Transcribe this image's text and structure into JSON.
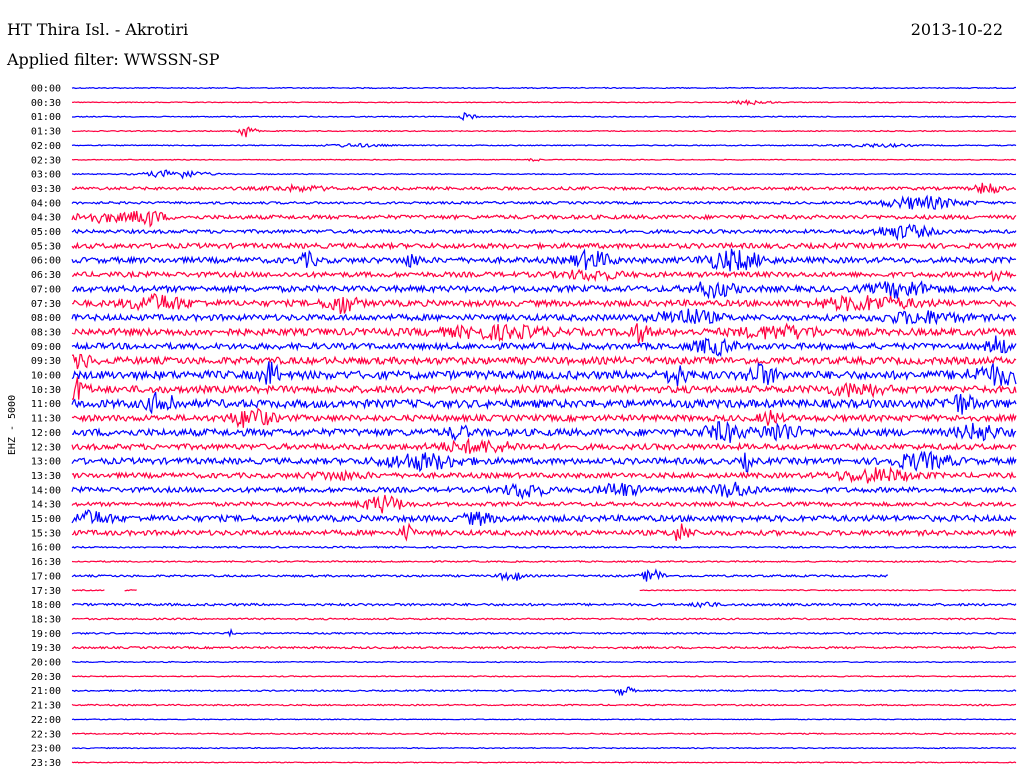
{
  "header": {
    "station": "HT Thira Isl. - Akrotiri",
    "date": "2013-10-22",
    "filter": "Applied filter: WWSSN-SP"
  },
  "chart_data": {
    "type": "line",
    "title": "HT Thira Isl. - Akrotiri",
    "ylabel": "EHZ - 5000",
    "colors": [
      "#0000ff",
      "#ff0040"
    ],
    "rows": [
      {
        "label": "00:00",
        "noise": 0.5
      },
      {
        "label": "00:30",
        "noise": 0.4,
        "events": [
          {
            "t": 0.72,
            "a": 2,
            "w": 0.02
          }
        ]
      },
      {
        "label": "01:00",
        "noise": 0.5,
        "events": [
          {
            "t": 0.42,
            "a": 7,
            "w": 0.006
          }
        ]
      },
      {
        "label": "01:30",
        "noise": 0.5,
        "events": [
          {
            "t": 0.185,
            "a": 7,
            "w": 0.008
          }
        ]
      },
      {
        "label": "02:00",
        "noise": 0.5,
        "events": [
          {
            "t": 0.3,
            "a": 1.5,
            "w": 0.03
          },
          {
            "t": 0.85,
            "a": 1.5,
            "w": 0.04
          }
        ]
      },
      {
        "label": "02:30",
        "noise": 0.4,
        "events": [
          {
            "t": 0.49,
            "a": 2,
            "w": 0.005
          }
        ]
      },
      {
        "label": "03:00",
        "noise": 0.5,
        "events": [
          {
            "t": 0.11,
            "a": 4,
            "w": 0.03
          }
        ]
      },
      {
        "label": "03:30",
        "noise": 1.5,
        "events": [
          {
            "t": 0.97,
            "a": 6,
            "w": 0.012
          },
          {
            "t": 0.24,
            "a": 2,
            "w": 0.03
          }
        ]
      },
      {
        "label": "04:00",
        "noise": 1.2,
        "events": [
          {
            "t": 0.9,
            "a": 6,
            "w": 0.04
          }
        ]
      },
      {
        "label": "04:30",
        "noise": 2,
        "events": [
          {
            "t": 0.08,
            "a": 8,
            "w": 0.015
          },
          {
            "t": 0.03,
            "a": 4,
            "w": 0.03
          }
        ]
      },
      {
        "label": "05:00",
        "noise": 1.8,
        "events": [
          {
            "t": 0.88,
            "a": 6,
            "w": 0.03
          }
        ]
      },
      {
        "label": "05:30",
        "noise": 2.5
      },
      {
        "label": "06:00",
        "noise": 2.8,
        "events": [
          {
            "t": 0.25,
            "a": 6,
            "w": 0.01
          },
          {
            "t": 0.36,
            "a": 5,
            "w": 0.01
          },
          {
            "t": 0.55,
            "a": 8,
            "w": 0.02
          },
          {
            "t": 0.7,
            "a": 9,
            "w": 0.03
          }
        ]
      },
      {
        "label": "06:30",
        "noise": 2.5,
        "events": [
          {
            "t": 0.98,
            "a": 8,
            "w": 0.008
          },
          {
            "t": 0.55,
            "a": 4,
            "w": 0.03
          }
        ]
      },
      {
        "label": "07:00",
        "noise": 3,
        "events": [
          {
            "t": 0.68,
            "a": 7,
            "w": 0.02
          },
          {
            "t": 0.88,
            "a": 7,
            "w": 0.03
          }
        ]
      },
      {
        "label": "07:30",
        "noise": 3,
        "events": [
          {
            "t": 0.09,
            "a": 7,
            "w": 0.03
          },
          {
            "t": 0.285,
            "a": 9,
            "w": 0.015
          },
          {
            "t": 0.84,
            "a": 6,
            "w": 0.05
          }
        ]
      },
      {
        "label": "08:00",
        "noise": 3,
        "events": [
          {
            "t": 0.65,
            "a": 7,
            "w": 0.03
          },
          {
            "t": 0.9,
            "a": 5,
            "w": 0.04
          }
        ]
      },
      {
        "label": "08:30",
        "noise": 3.5,
        "events": [
          {
            "t": 0.6,
            "a": 8,
            "w": 0.01
          },
          {
            "t": 0.45,
            "a": 5,
            "w": 0.05
          },
          {
            "t": 0.75,
            "a": 5,
            "w": 0.04
          }
        ]
      },
      {
        "label": "09:00",
        "noise": 3,
        "events": [
          {
            "t": 0.68,
            "a": 7,
            "w": 0.02
          },
          {
            "t": 0.98,
            "a": 9,
            "w": 0.01
          }
        ]
      },
      {
        "label": "09:30",
        "noise": 3.5,
        "events": [
          {
            "t": 0.01,
            "a": 6,
            "w": 0.01
          }
        ]
      },
      {
        "label": "10:00",
        "noise": 4,
        "events": [
          {
            "t": 0.21,
            "a": 12,
            "w": 0.008
          },
          {
            "t": 0.64,
            "a": 9,
            "w": 0.01
          },
          {
            "t": 0.73,
            "a": 9,
            "w": 0.015
          },
          {
            "t": 0.98,
            "a": 8,
            "w": 0.03
          }
        ]
      },
      {
        "label": "10:30",
        "noise": 3.5,
        "events": [
          {
            "t": 0.005,
            "a": 10,
            "w": 0.01
          },
          {
            "t": 0.83,
            "a": 5,
            "w": 0.03
          }
        ]
      },
      {
        "label": "11:00",
        "noise": 4,
        "events": [
          {
            "t": 0.09,
            "a": 8,
            "w": 0.01
          },
          {
            "t": 0.105,
            "a": 8,
            "w": 0.005
          },
          {
            "t": 0.94,
            "a": 8,
            "w": 0.015
          }
        ]
      },
      {
        "label": "11:30",
        "noise": 3,
        "events": [
          {
            "t": 0.19,
            "a": 9,
            "w": 0.02
          },
          {
            "t": 0.74,
            "a": 6,
            "w": 0.01
          }
        ]
      },
      {
        "label": "12:00",
        "noise": 3.5,
        "events": [
          {
            "t": 0.41,
            "a": 6,
            "w": 0.01
          },
          {
            "t": 0.69,
            "a": 8,
            "w": 0.02
          },
          {
            "t": 0.75,
            "a": 8,
            "w": 0.02
          },
          {
            "t": 0.96,
            "a": 7,
            "w": 0.02
          }
        ]
      },
      {
        "label": "12:30",
        "noise": 2.8,
        "events": [
          {
            "t": 0.43,
            "a": 5,
            "w": 0.04
          }
        ]
      },
      {
        "label": "13:00",
        "noise": 3,
        "events": [
          {
            "t": 0.37,
            "a": 7,
            "w": 0.04
          },
          {
            "t": 0.715,
            "a": 8,
            "w": 0.005
          },
          {
            "t": 0.9,
            "a": 7,
            "w": 0.03
          }
        ]
      },
      {
        "label": "13:30",
        "noise": 2.5,
        "events": [
          {
            "t": 0.85,
            "a": 6,
            "w": 0.04
          },
          {
            "t": 0.28,
            "a": 3,
            "w": 0.03
          }
        ]
      },
      {
        "label": "14:00",
        "noise": 2.5,
        "events": [
          {
            "t": 0.48,
            "a": 7,
            "w": 0.02
          },
          {
            "t": 0.58,
            "a": 6,
            "w": 0.02
          },
          {
            "t": 0.7,
            "a": 7,
            "w": 0.02
          }
        ]
      },
      {
        "label": "14:30",
        "noise": 2,
        "events": [
          {
            "t": 0.33,
            "a": 8,
            "w": 0.02
          }
        ]
      },
      {
        "label": "15:00",
        "noise": 3,
        "events": [
          {
            "t": 0.02,
            "a": 6,
            "w": 0.02
          },
          {
            "t": 0.43,
            "a": 5,
            "w": 0.015
          }
        ]
      },
      {
        "label": "15:30",
        "noise": 2.5,
        "events": [
          {
            "t": 0.355,
            "a": 8,
            "w": 0.006
          },
          {
            "t": 0.645,
            "a": 8,
            "w": 0.01
          }
        ]
      },
      {
        "label": "16:00",
        "noise": 0.8
      },
      {
        "label": "16:30",
        "noise": 0.7
      },
      {
        "label": "17:00",
        "noise": 1,
        "end": 0.865,
        "events": [
          {
            "t": 0.465,
            "a": 6,
            "w": 0.01
          },
          {
            "t": 0.615,
            "a": 7,
            "w": 0.01
          }
        ]
      },
      {
        "label": "17:30",
        "noise": 0.5,
        "gaps": [
          [
            0.035,
            0.055
          ],
          [
            0.07,
            0.6
          ]
        ],
        "events": [
          {
            "t": 0.05,
            "a": 3,
            "w": 0.005
          }
        ]
      },
      {
        "label": "18:00",
        "noise": 1.2,
        "events": [
          {
            "t": 0.67,
            "a": 3,
            "w": 0.01
          }
        ]
      },
      {
        "label": "18:30",
        "noise": 0.8
      },
      {
        "label": "19:00",
        "noise": 0.8,
        "events": [
          {
            "t": 0.17,
            "a": 3,
            "w": 0.005
          }
        ]
      },
      {
        "label": "19:30",
        "noise": 1
      },
      {
        "label": "20:00",
        "noise": 0.5
      },
      {
        "label": "20:30",
        "noise": 0.5
      },
      {
        "label": "21:00",
        "noise": 0.7,
        "events": [
          {
            "t": 0.585,
            "a": 5,
            "w": 0.008
          }
        ]
      },
      {
        "label": "21:30",
        "noise": 0.7
      },
      {
        "label": "22:00",
        "noise": 0.4
      },
      {
        "label": "22:30",
        "noise": 0.6
      },
      {
        "label": "23:00",
        "noise": 0.5
      },
      {
        "label": "23:30",
        "noise": 0.4
      }
    ]
  }
}
